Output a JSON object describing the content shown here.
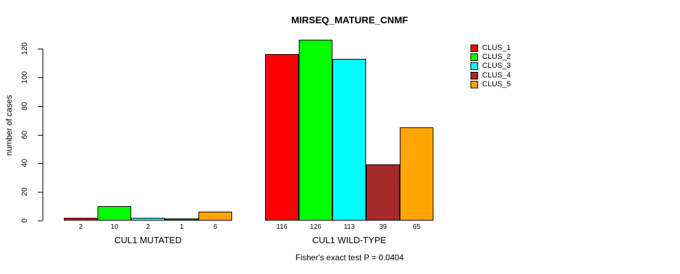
{
  "chart_data": {
    "type": "bar",
    "title": "MIRSEQ_MATURE_CNMF",
    "ylabel": "number of cases",
    "xlabel": "",
    "annotation": "Fisher's exact test P = 0.0404",
    "categories": [
      "CUL1 MUTATED",
      "CUL1 WILD-TYPE"
    ],
    "series": [
      {
        "name": "CLUS_1",
        "color": "#FF0000",
        "values": [
          2,
          116
        ]
      },
      {
        "name": "CLUS_2",
        "color": "#00FF00",
        "values": [
          10,
          126
        ]
      },
      {
        "name": "CLUS_3",
        "color": "#00FFFF",
        "values": [
          2,
          113
        ]
      },
      {
        "name": "CLUS_4",
        "color": "#A52A2A",
        "values": [
          1,
          39
        ]
      },
      {
        "name": "CLUS_5",
        "color": "#FFA500",
        "values": [
          6,
          65
        ]
      }
    ],
    "bar_value_labels": [
      [
        "2",
        "10",
        "2",
        "1",
        "6"
      ],
      [
        "116",
        "126",
        "113",
        "39",
        "65"
      ]
    ],
    "yticks": [
      0,
      20,
      40,
      60,
      80,
      100,
      120
    ],
    "ylim": [
      0,
      120
    ],
    "grid": false,
    "legend_position": "right",
    "legend_entries": [
      "CLUS_1",
      "CLUS_2",
      "CLUS_3",
      "CLUS_4",
      "CLUS_5"
    ]
  }
}
